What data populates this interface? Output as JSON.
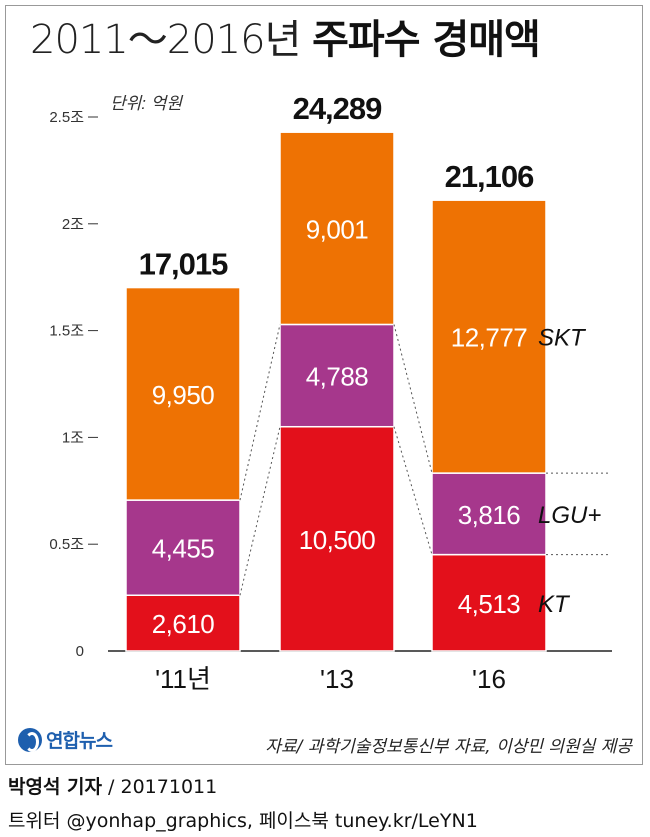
{
  "header": {
    "title_light": "2011～2016년",
    "title_bold": "주파수 경매액"
  },
  "chart_data": {
    "type": "bar",
    "stacked": true,
    "unit_note": "단위: 억원",
    "categories": [
      "'11년",
      "'13",
      "'16"
    ],
    "totals": [
      "17,015",
      "24,289",
      "21,106"
    ],
    "series": [
      {
        "name": "KT",
        "values": [
          2610,
          10500,
          4513
        ],
        "labels": [
          "2,610",
          "10,500",
          "4,513"
        ],
        "color": "#e3101b"
      },
      {
        "name": "LGU+",
        "values": [
          4455,
          4788,
          3816
        ],
        "labels": [
          "4,455",
          "4,788",
          "3,816"
        ],
        "color": "#a6378c"
      },
      {
        "name": "SKT",
        "values": [
          9950,
          9001,
          12777
        ],
        "labels": [
          "9,950",
          "9,001",
          "12,777"
        ],
        "color": "#ee7203"
      }
    ],
    "yticks": [
      {
        "value": 0,
        "label": "0"
      },
      {
        "value": 5000,
        "label": "0.5조"
      },
      {
        "value": 10000,
        "label": "1조"
      },
      {
        "value": 15000,
        "label": "1.5조"
      },
      {
        "value": 20000,
        "label": "2조"
      },
      {
        "value": 25000,
        "label": "2.5조"
      }
    ],
    "ylim": [
      0,
      25000
    ]
  },
  "footer": {
    "logo_text": "연합뉴스",
    "source": "자료/ 과학기술정보통신부 자료, 이상민 의원실 제공",
    "reporter": "박영석 기자",
    "date": " / 20171011",
    "social": "트위터 @yonhap_graphics, 페이스북 tuney.kr/LeYN1"
  }
}
